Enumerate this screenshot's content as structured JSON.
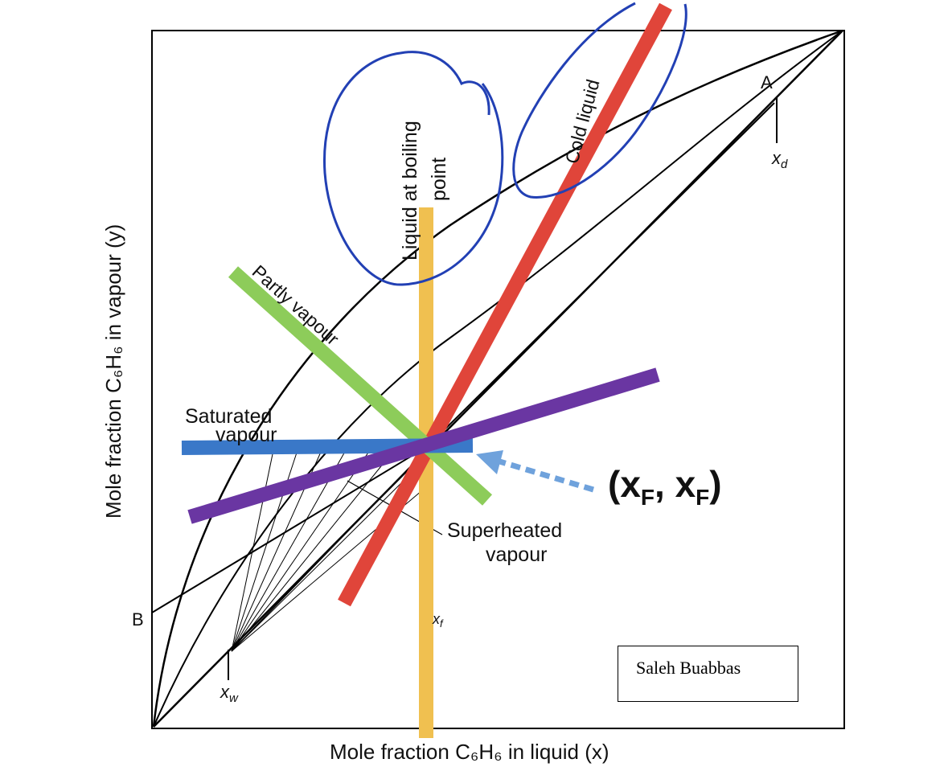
{
  "diagram": {
    "x_axis_label": "Mole fraction C₆H₆ in liquid (x)",
    "y_axis_label": "Mole fraction C₆H₆ in vapour (y)",
    "point_A": "A",
    "point_B": "B",
    "xd": "x",
    "xd_sub": "d",
    "xw": "x",
    "xw_sub": "w",
    "xf": "x",
    "xf_sub": "f",
    "feed_point": "(x",
    "feed_point_sub": "F",
    "feed_point_mid": ", x",
    "feed_point_end": ")",
    "q_lines": {
      "liquid_boiling_line1": "Liquid at boiling",
      "liquid_boiling_line2": "point",
      "cold_liquid": "Cold liquid",
      "partly_vapour": "Partly vapour",
      "saturated_vapour_line1": "Saturated",
      "saturated_vapour_line2": "vapour",
      "superheated_vapour_line1": "Superheated",
      "superheated_vapour_line2": "vapour"
    },
    "colors": {
      "liquid_boiling": "#f0c050",
      "cold_liquid": "#e0453a",
      "partly_vapour": "#8dcc5a",
      "saturated_vapour": "#3a78c8",
      "superheated_vapour": "#6a36a2",
      "arrow": "#6fa2dc",
      "annotation": "#2240b4"
    }
  },
  "nameplate": {
    "text": "Saleh Buabbas"
  }
}
